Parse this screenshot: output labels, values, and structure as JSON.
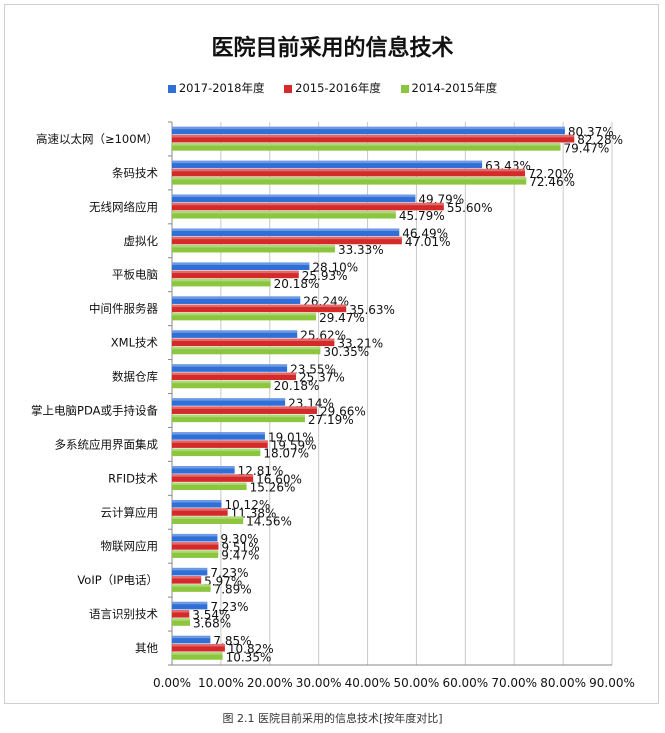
{
  "chart_data": {
    "type": "bar",
    "orientation": "horizontal",
    "title": "医院目前采用的信息技术",
    "caption": "图 2.1  医院目前采用的信息技术[按年度对比]",
    "xlabel": "",
    "ylabel": "",
    "xlim": [
      0,
      90
    ],
    "xticks": [
      "0.00%",
      "10.00%",
      "20.00%",
      "30.00%",
      "40.00%",
      "50.00%",
      "60.00%",
      "70.00%",
      "80.00%",
      "90.00%"
    ],
    "grid": true,
    "legend_position": "top",
    "categories": [
      "高速以太网（≥100M）",
      "条码技术",
      "无线网络应用",
      "虚拟化",
      "平板电脑",
      "中间件服务器",
      "XML技术",
      "数据仓库",
      "掌上电脑PDA或手持设备",
      "多系统应用界面集成",
      "RFID技术",
      "云计算应用",
      "物联网应用",
      "VoIP（IP电话）",
      "语言识别技术",
      "其他"
    ],
    "series": [
      {
        "name": "2017-2018年度",
        "color": "#2f6fd6",
        "values": [
          80.37,
          63.43,
          49.79,
          46.49,
          28.1,
          26.24,
          25.62,
          23.55,
          23.14,
          19.01,
          12.81,
          10.12,
          9.3,
          7.23,
          7.23,
          7.85
        ]
      },
      {
        "name": "2015-2016年度",
        "color": "#d42a2a",
        "values": [
          82.28,
          72.2,
          55.6,
          47.01,
          25.93,
          35.63,
          33.21,
          25.37,
          29.66,
          19.59,
          16.6,
          11.38,
          9.51,
          5.97,
          3.54,
          10.82
        ]
      },
      {
        "name": "2014-2015年度",
        "color": "#8cc63f",
        "values": [
          79.47,
          72.46,
          45.79,
          33.33,
          20.18,
          29.47,
          30.35,
          20.18,
          27.19,
          18.07,
          15.26,
          14.56,
          9.47,
          7.89,
          3.68,
          10.35
        ]
      }
    ]
  }
}
